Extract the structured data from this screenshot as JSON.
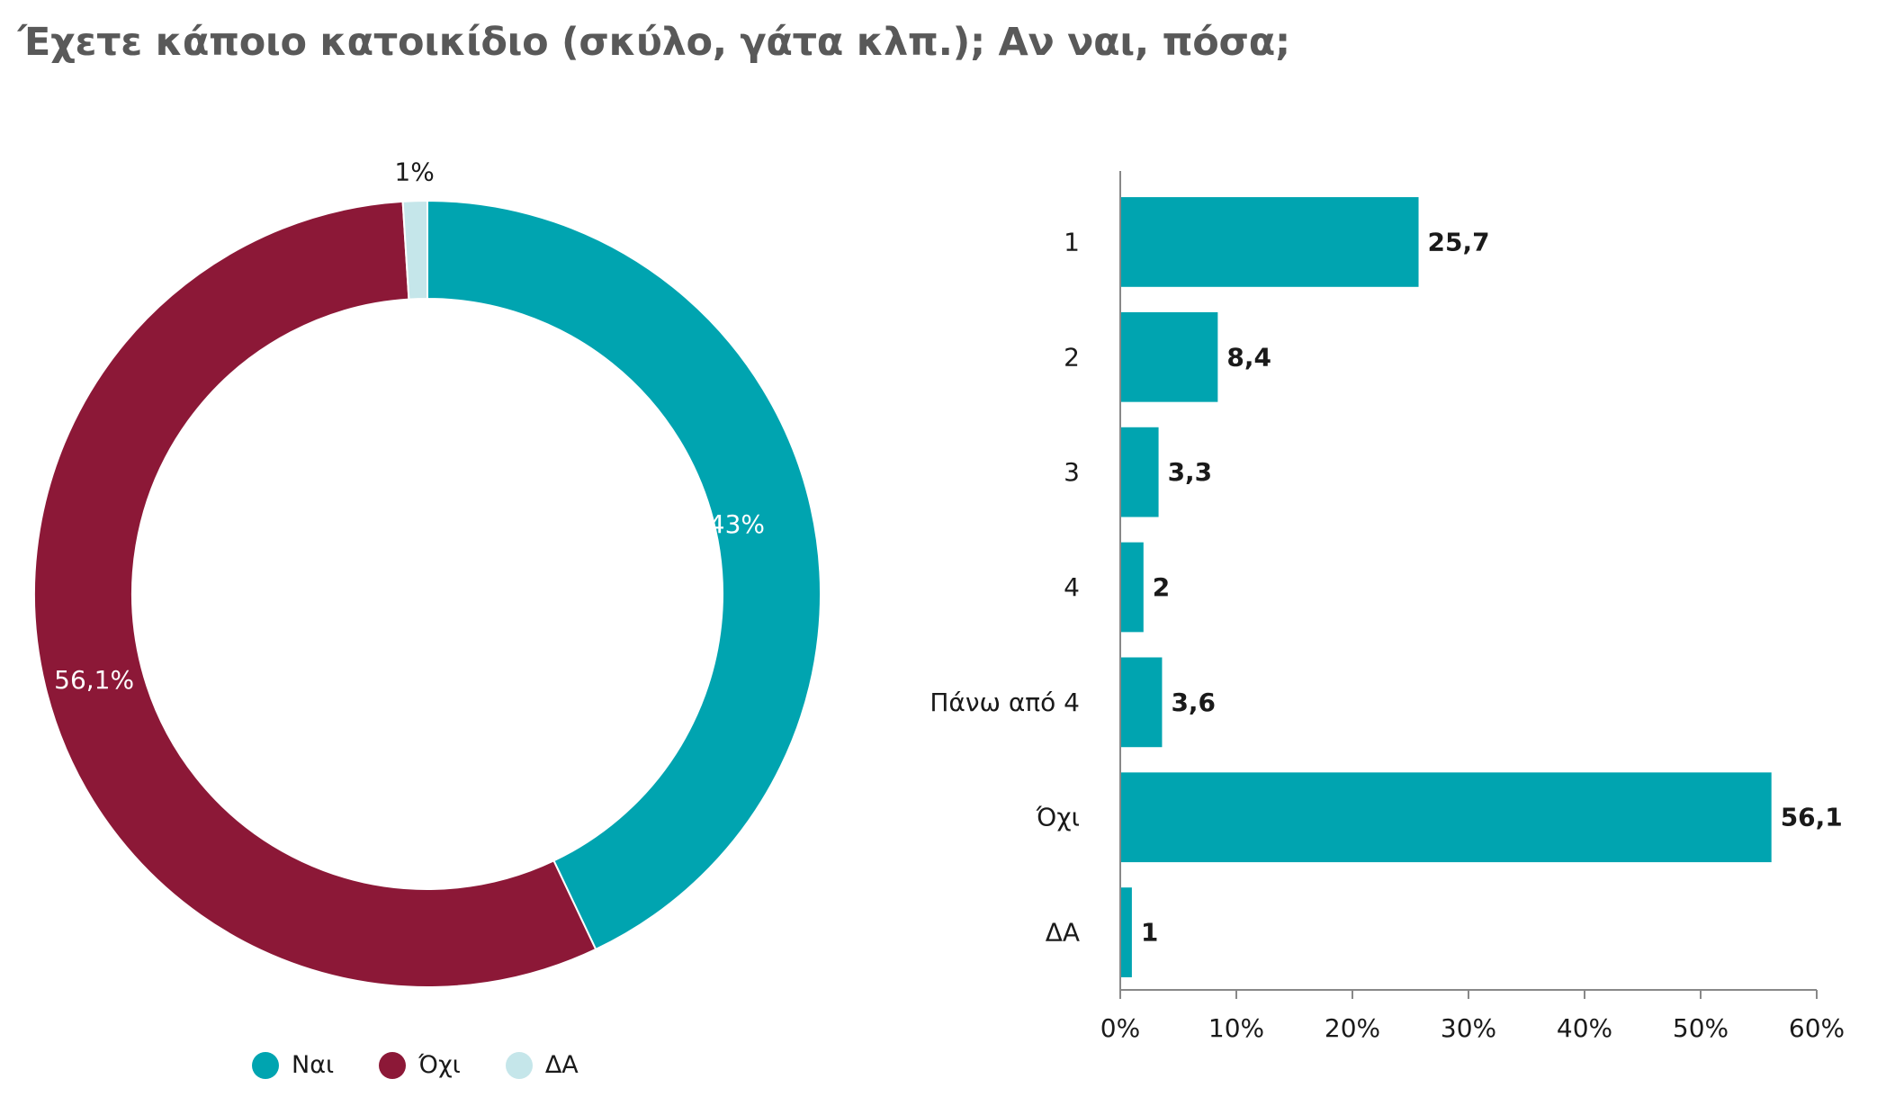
{
  "title": "Έχετε κάποιο κατοικίδιο (σκύλο, γάτα κλπ.); Αν ναι, πόσα;",
  "colors": {
    "yes": "#00A4B0",
    "no": "#8C1837",
    "da": "#C5E6EA",
    "bar": "#00A4B0",
    "axis": "#888888"
  },
  "chart_data": [
    {
      "type": "pie",
      "style": "donut",
      "categories": [
        "Ναι",
        "Όχι",
        "ΔΑ"
      ],
      "values": [
        43,
        56.1,
        1
      ],
      "data_labels": [
        "43%",
        "56,1%",
        "1%"
      ],
      "legend": {
        "placement": "bottom",
        "entries": [
          "Ναι",
          "Όχι",
          "ΔΑ"
        ]
      }
    },
    {
      "type": "bar",
      "orientation": "horizontal",
      "categories": [
        "1",
        "2",
        "3",
        "4",
        "Πάνω από 4",
        "Όχι",
        "ΔΑ"
      ],
      "values": [
        25.7,
        8.4,
        3.3,
        2,
        3.6,
        56.1,
        1
      ],
      "data_labels": [
        "25,7",
        "8,4",
        "3,3",
        "2",
        "3,6",
        "56,1",
        "1"
      ],
      "xlim": [
        0,
        60
      ],
      "x_ticks": [
        "0%",
        "10%",
        "20%",
        "30%",
        "40%",
        "50%",
        "60%"
      ],
      "grid": false
    }
  ]
}
